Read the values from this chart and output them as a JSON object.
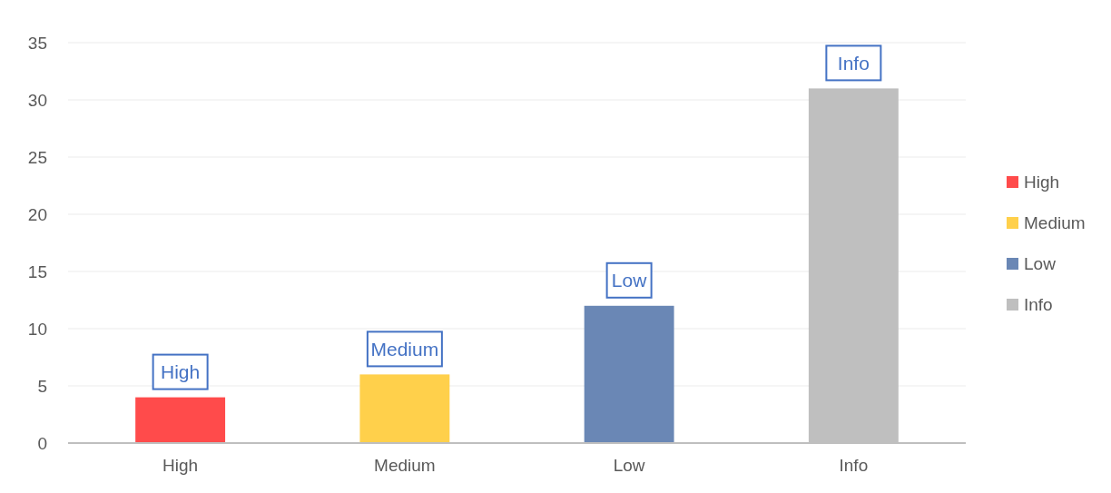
{
  "chart_data": {
    "type": "bar",
    "categories": [
      "High",
      "Medium",
      "Low",
      "Info"
    ],
    "series": [
      {
        "name": "High",
        "color": "#ff4b4b",
        "values": [
          4,
          null,
          null,
          null
        ],
        "value_labels": [
          "High",
          null,
          null,
          null
        ]
      },
      {
        "name": "Medium",
        "color": "#ffd04b",
        "values": [
          null,
          6,
          null,
          null
        ],
        "value_labels": [
          null,
          "Medium",
          null,
          null
        ]
      },
      {
        "name": "Low",
        "color": "#6a87b5",
        "values": [
          null,
          null,
          12,
          null
        ],
        "value_labels": [
          null,
          null,
          "Low",
          null
        ]
      },
      {
        "name": "Info",
        "color": "#bfbfbf",
        "values": [
          null,
          null,
          null,
          31
        ],
        "value_labels": [
          null,
          null,
          null,
          "Info"
        ]
      }
    ],
    "ylim": [
      0,
      35
    ],
    "yticks": [
      0,
      5,
      10,
      15,
      20,
      25,
      30,
      35
    ],
    "grid": "y",
    "legend": "right"
  }
}
